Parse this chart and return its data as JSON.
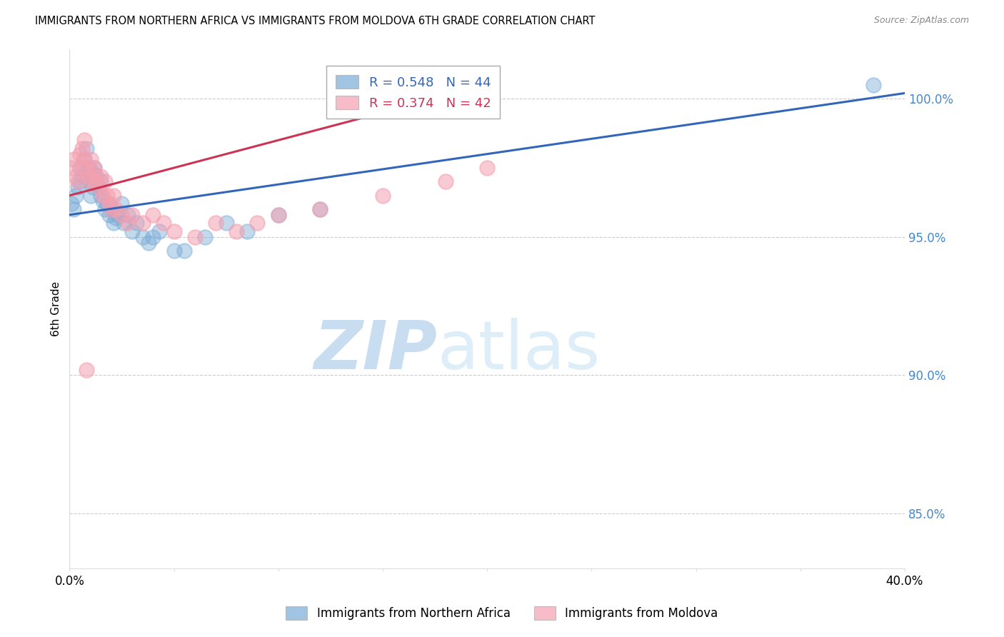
{
  "title": "IMMIGRANTS FROM NORTHERN AFRICA VS IMMIGRANTS FROM MOLDOVA 6TH GRADE CORRELATION CHART",
  "source": "Source: ZipAtlas.com",
  "ylabel": "6th Grade",
  "y_ticks": [
    85.0,
    90.0,
    95.0,
    100.0
  ],
  "y_tick_labels": [
    "85.0%",
    "90.0%",
    "95.0%",
    "100.0%"
  ],
  "x_range": [
    0.0,
    40.0
  ],
  "y_range": [
    83.0,
    101.8
  ],
  "blue_R": 0.548,
  "blue_N": 44,
  "pink_R": 0.374,
  "pink_N": 42,
  "blue_color": "#7aacd6",
  "pink_color": "#f4a0b0",
  "blue_line_color": "#3366bb",
  "pink_line_color": "#cc3355",
  "watermark_zip": "ZIP",
  "watermark_atlas": "atlas",
  "legend_label_blue": "Immigrants from Northern Africa",
  "legend_label_pink": "Immigrants from Moldova",
  "blue_scatter_x": [
    0.1,
    0.2,
    0.3,
    0.4,
    0.5,
    0.5,
    0.6,
    0.7,
    0.8,
    0.9,
    1.0,
    1.0,
    1.1,
    1.1,
    1.2,
    1.3,
    1.4,
    1.5,
    1.5,
    1.6,
    1.7,
    1.8,
    1.9,
    2.0,
    2.1,
    2.2,
    2.3,
    2.5,
    2.6,
    2.8,
    3.0,
    3.2,
    3.5,
    3.8,
    4.0,
    4.3,
    5.0,
    5.5,
    6.5,
    7.5,
    8.5,
    10.0,
    12.0,
    38.5
  ],
  "blue_scatter_y": [
    96.2,
    96.0,
    96.5,
    96.8,
    97.5,
    97.0,
    97.2,
    97.8,
    98.2,
    97.5,
    96.5,
    97.0,
    96.8,
    97.3,
    97.5,
    97.2,
    96.8,
    97.0,
    96.5,
    96.3,
    96.0,
    96.2,
    95.8,
    96.0,
    95.5,
    95.7,
    95.8,
    96.2,
    95.5,
    95.8,
    95.2,
    95.5,
    95.0,
    94.8,
    95.0,
    95.2,
    94.5,
    94.5,
    95.0,
    95.5,
    95.2,
    95.8,
    96.0,
    100.5
  ],
  "pink_scatter_x": [
    0.1,
    0.2,
    0.3,
    0.4,
    0.5,
    0.6,
    0.6,
    0.7,
    0.7,
    0.8,
    0.9,
    1.0,
    1.0,
    1.1,
    1.2,
    1.3,
    1.4,
    1.5,
    1.6,
    1.7,
    1.8,
    1.9,
    2.0,
    2.1,
    2.2,
    2.5,
    2.8,
    3.0,
    3.5,
    4.0,
    4.5,
    5.0,
    6.0,
    7.0,
    8.0,
    9.0,
    10.0,
    12.0,
    15.0,
    18.0,
    20.0,
    0.8
  ],
  "pink_scatter_y": [
    97.5,
    97.8,
    97.2,
    97.0,
    98.0,
    97.5,
    98.2,
    98.5,
    97.8,
    97.5,
    97.2,
    97.0,
    97.8,
    97.3,
    97.5,
    97.0,
    96.8,
    97.2,
    96.5,
    97.0,
    96.5,
    96.2,
    96.0,
    96.5,
    96.0,
    95.8,
    95.5,
    95.8,
    95.5,
    95.8,
    95.5,
    95.2,
    95.0,
    95.5,
    95.2,
    95.5,
    95.8,
    96.0,
    96.5,
    97.0,
    97.5,
    90.2
  ],
  "blue_line_x0": 0.0,
  "blue_line_y0": 95.8,
  "blue_line_x1": 40.0,
  "blue_line_y1": 100.2,
  "pink_line_x0": 0.0,
  "pink_line_y0": 96.5,
  "pink_line_x1": 15.0,
  "pink_line_y1": 99.5
}
